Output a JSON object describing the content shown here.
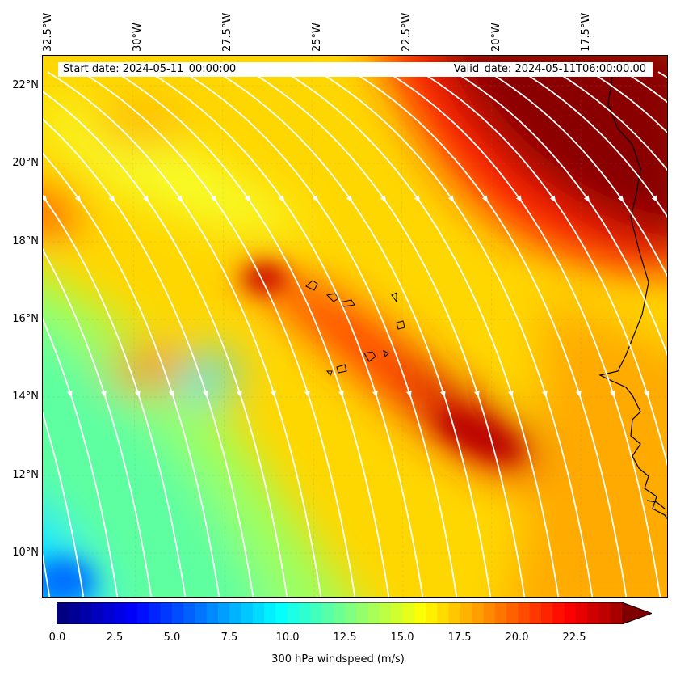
{
  "map": {
    "start_label": "Start date: 2024-05-11_00:00:00",
    "valid_label": "Valid_date: 2024-05-11T06:00:00.00",
    "lon_labels": [
      "32.5°W",
      "30°W",
      "27.5°W",
      "25°W",
      "22.5°W",
      "20°W",
      "17.5°W"
    ],
    "lat_labels": [
      "22°N",
      "20°N",
      "18°N",
      "16°N",
      "14°N",
      "12°N",
      "10°N"
    ],
    "extent": {
      "lon_min": -32.5,
      "lon_max": -15.0,
      "lat_min": 8.9,
      "lat_max": 22.8
    },
    "colorbar": {
      "ticks": [
        "0.0",
        "2.5",
        "5.0",
        "7.5",
        "10.0",
        "12.5",
        "15.0",
        "17.5",
        "20.0",
        "22.5"
      ],
      "label": "300 hPa windspeed (m/s)",
      "range": [
        0,
        25
      ],
      "extend": "max",
      "colormap": "jet"
    }
  }
}
